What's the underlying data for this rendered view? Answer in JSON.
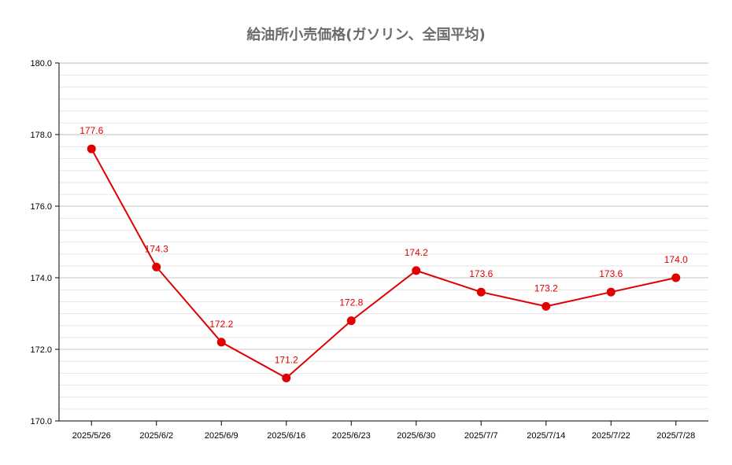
{
  "chart_data": {
    "type": "line",
    "title": "給油所小売価格(ガソリン、全国平均)",
    "xlabel": "",
    "ylabel": "",
    "categories": [
      "2025/5/26",
      "2025/6/2",
      "2025/6/9",
      "2025/6/16",
      "2025/6/23",
      "2025/6/30",
      "2025/7/7",
      "2025/7/14",
      "2025/7/22",
      "2025/7/28"
    ],
    "series": [
      {
        "values": [
          177.6,
          174.3,
          172.2,
          171.2,
          172.8,
          174.2,
          173.6,
          173.2,
          173.6,
          174.0
        ],
        "color": "#e00000"
      }
    ],
    "data_labels": [
      "177.6",
      "174.3",
      "172.2",
      "171.2",
      "172.8",
      "174.2",
      "173.6",
      "173.2",
      "173.6",
      "174.0"
    ],
    "y_ticks": [
      "170.0",
      "172.0",
      "174.0",
      "176.0",
      "178.0",
      "180.0"
    ],
    "y_tick_values": [
      170,
      172,
      174,
      176,
      178,
      180
    ],
    "ylim": [
      170,
      180
    ],
    "grid": true,
    "minor_grid_step": 0.333,
    "legend": "none"
  }
}
